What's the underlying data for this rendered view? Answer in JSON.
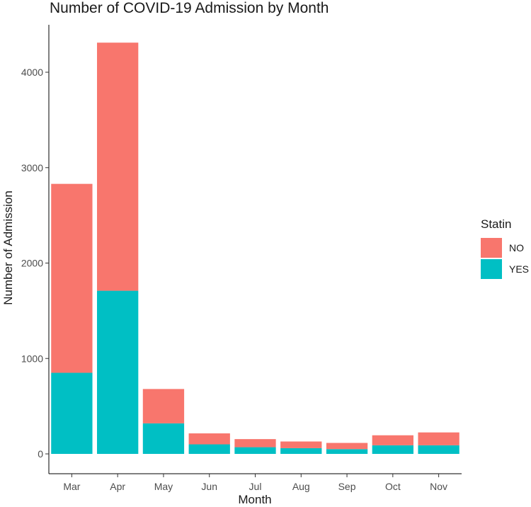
{
  "chart_data": {
    "type": "bar",
    "stacked": true,
    "title": "Number of COVID-19 Admission by Month",
    "xlabel": "Month",
    "ylabel": "Number of Admission",
    "categories": [
      "Mar",
      "Apr",
      "May",
      "Jun",
      "Jul",
      "Aug",
      "Sep",
      "Oct",
      "Nov"
    ],
    "ylim": [
      0,
      4300
    ],
    "yticks": [
      0,
      1000,
      2000,
      3000,
      4000
    ],
    "grid": false,
    "legend": {
      "title": "Statin",
      "position": "right"
    },
    "series": [
      {
        "name": "YES",
        "color": "#00BFC4",
        "values": [
          850,
          1710,
          320,
          100,
          70,
          60,
          50,
          90,
          90
        ]
      },
      {
        "name": "NO",
        "color": "#F8766D",
        "values": [
          1980,
          2600,
          360,
          115,
          85,
          70,
          65,
          105,
          135
        ]
      }
    ]
  }
}
